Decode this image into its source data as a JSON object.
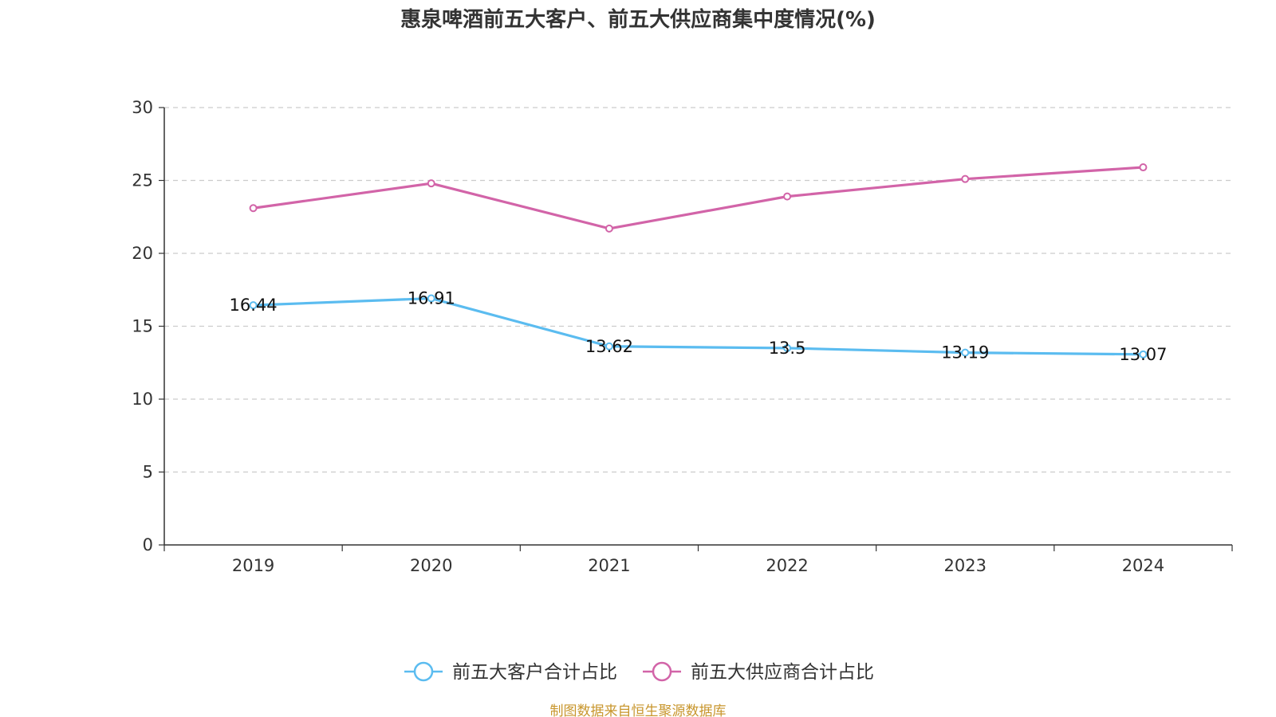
{
  "chart_data": {
    "type": "line",
    "title": "惠泉啤酒前五大客户、前五大供应商集中度情况(%)",
    "categories": [
      "2019",
      "2020",
      "2021",
      "2022",
      "2023",
      "2024"
    ],
    "ylim": [
      0,
      30
    ],
    "yticks": [
      0,
      5,
      10,
      15,
      20,
      25,
      30
    ],
    "grid": true,
    "legend_position": "bottom",
    "series": [
      {
        "name": "前五大客户合计占比",
        "values": [
          16.44,
          16.91,
          13.62,
          13.5,
          13.19,
          13.07
        ],
        "labels": [
          "16.44",
          "16.91",
          "13.62",
          "13.5",
          "13.19",
          "13.07"
        ],
        "color": "#5bbcf0",
        "show_labels": true
      },
      {
        "name": "前五大供应商合计占比",
        "values": [
          23.1,
          24.8,
          21.7,
          23.9,
          25.1,
          25.9
        ],
        "color": "#d264a8",
        "show_labels": false
      }
    ]
  },
  "source": {
    "text": "制图数据来自恒生聚源数据库",
    "color": "#c8962d"
  }
}
